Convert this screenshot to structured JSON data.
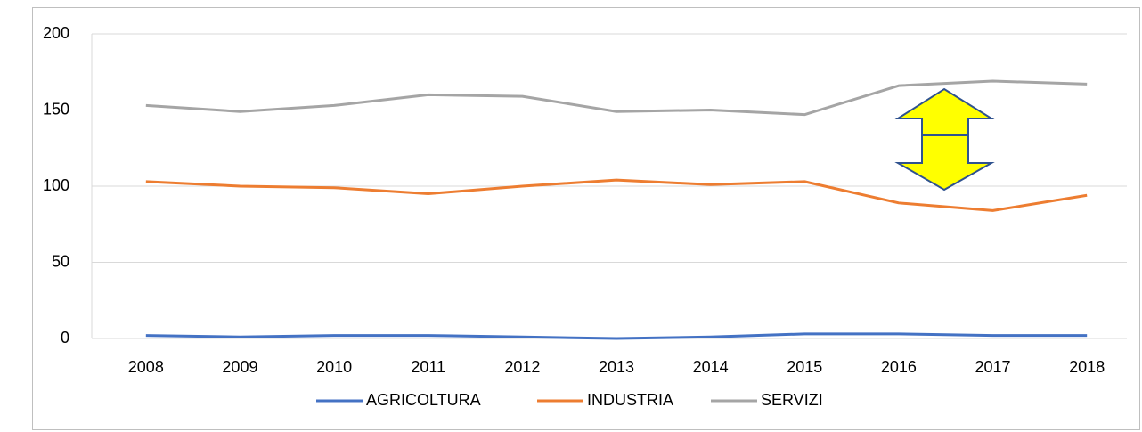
{
  "chart_data": {
    "type": "line",
    "categories": [
      "2008",
      "2009",
      "2010",
      "2011",
      "2012",
      "2013",
      "2014",
      "2015",
      "2016",
      "2017",
      "2018"
    ],
    "series": [
      {
        "name": "AGRICOLTURA",
        "color": "#4472c4",
        "values": [
          2,
          1,
          2,
          2,
          1,
          0,
          1,
          3,
          3,
          2,
          2
        ]
      },
      {
        "name": "INDUSTRIA",
        "color": "#ed7d31",
        "values": [
          103,
          100,
          99,
          95,
          100,
          104,
          101,
          103,
          89,
          84,
          94
        ]
      },
      {
        "name": "SERVIZI",
        "color": "#a5a5a5",
        "values": [
          153,
          149,
          153,
          160,
          159,
          149,
          150,
          147,
          166,
          169,
          167
        ]
      }
    ],
    "ylim": [
      0,
      200
    ],
    "yticks": [
      0,
      50,
      100,
      150,
      200
    ],
    "grid": true,
    "legend": "bottom"
  }
}
